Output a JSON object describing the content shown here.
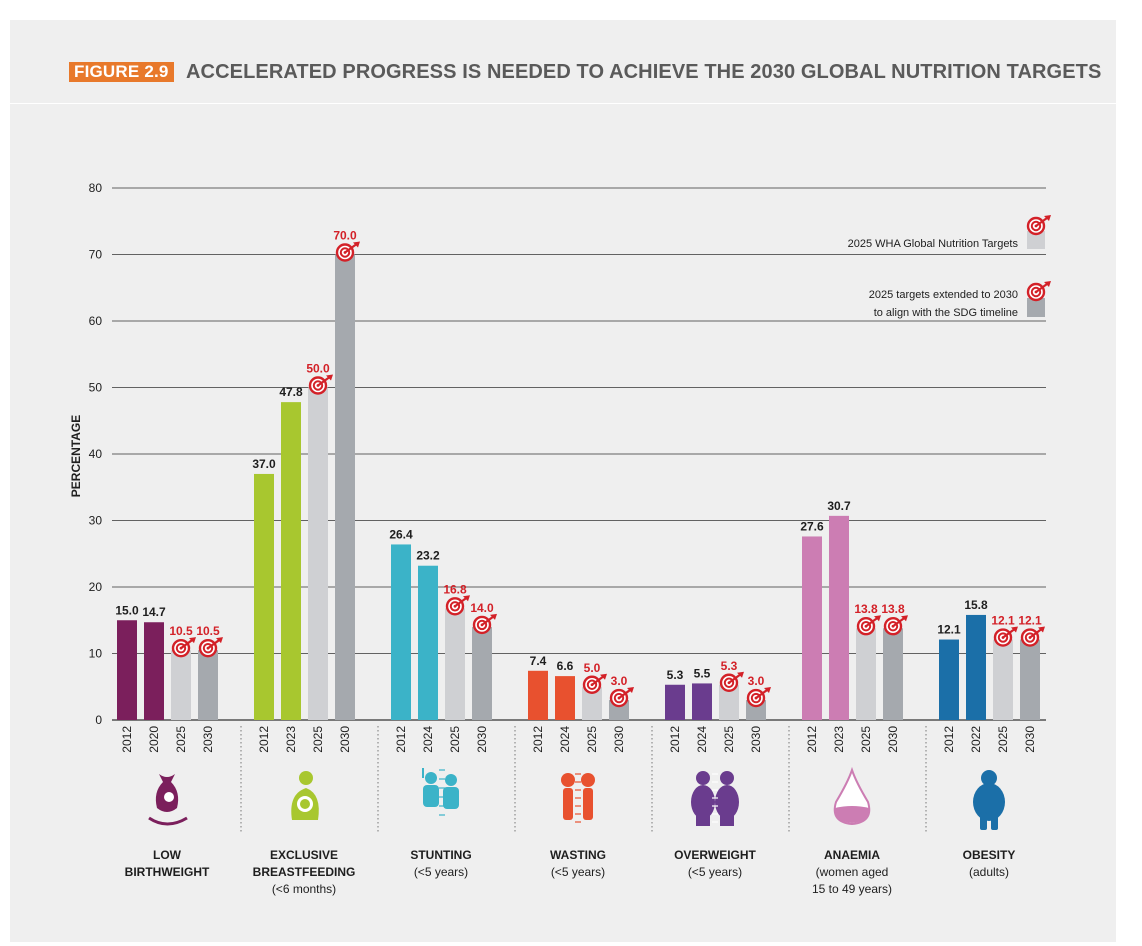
{
  "figure": {
    "label": "FIGURE 2.9",
    "title": "ACCELERATED PROGRESS IS NEEDED TO ACHIEVE THE 2030 GLOBAL NUTRITION TARGETS"
  },
  "legend": {
    "wha_targets": "2025 WHA Global Nutrition Targets",
    "extended_line1": "2025 targets extended to 2030",
    "extended_line2": "to align with the SDG timeline"
  },
  "colors": {
    "target_2025": "#cfd0d3",
    "target_2030": "#a5a9ae",
    "target_text": "#d32128",
    "gridline": "#333333"
  },
  "chart_data": {
    "type": "bar",
    "ylabel": "PERCENTAGE",
    "ylim": [
      0,
      80
    ],
    "yticks": [
      0,
      10,
      20,
      30,
      40,
      50,
      60,
      70,
      80
    ],
    "grid": true,
    "legend_position": "top-right",
    "groups": [
      {
        "name": "LOW BIRTHWEIGHT",
        "lines": [
          "LOW",
          "BIRTHWEIGHT"
        ],
        "sub": [],
        "icon": "mother-hand-icon",
        "color": "#7b1f5c",
        "bars": [
          {
            "year": "2012",
            "value": 15.0,
            "label": "15.0",
            "kind": "actual"
          },
          {
            "year": "2020",
            "value": 14.7,
            "label": "14.7",
            "kind": "actual"
          },
          {
            "year": "2025",
            "value": 10.5,
            "label": "10.5",
            "kind": "target2025"
          },
          {
            "year": "2030",
            "value": 10.5,
            "label": "10.5",
            "kind": "target2030"
          }
        ]
      },
      {
        "name": "EXCLUSIVE BREASTFEEDING",
        "lines": [
          "EXCLUSIVE",
          "BREASTFEEDING"
        ],
        "sub": [
          "(<6 months)"
        ],
        "icon": "breastfeeding-icon",
        "color": "#a8c72f",
        "bars": [
          {
            "year": "2012",
            "value": 37.0,
            "label": "37.0",
            "kind": "actual"
          },
          {
            "year": "2023",
            "value": 47.8,
            "label": "47.8",
            "kind": "actual"
          },
          {
            "year": "2025",
            "value": 50.0,
            "label": "50.0",
            "kind": "target2025"
          },
          {
            "year": "2030",
            "value": 70.0,
            "label": "70.0",
            "kind": "target2030"
          }
        ]
      },
      {
        "name": "STUNTING",
        "lines": [
          "STUNTING"
        ],
        "sub": [
          "(<5 years)"
        ],
        "icon": "stunting-children-icon",
        "color": "#3bb3c8",
        "bars": [
          {
            "year": "2012",
            "value": 26.4,
            "label": "26.4",
            "kind": "actual"
          },
          {
            "year": "2024",
            "value": 23.2,
            "label": "23.2",
            "kind": "actual"
          },
          {
            "year": "2025",
            "value": 16.8,
            "label": "16.8",
            "kind": "target2025"
          },
          {
            "year": "2030",
            "value": 14.0,
            "label": "14.0",
            "kind": "target2030"
          }
        ]
      },
      {
        "name": "WASTING",
        "lines": [
          "WASTING"
        ],
        "sub": [
          "(<5 years)"
        ],
        "icon": "wasting-children-icon",
        "color": "#e8512f",
        "bars": [
          {
            "year": "2012",
            "value": 7.4,
            "label": "7.4",
            "kind": "actual"
          },
          {
            "year": "2024",
            "value": 6.6,
            "label": "6.6",
            "kind": "actual"
          },
          {
            "year": "2025",
            "value": 5.0,
            "label": "5.0",
            "kind": "target2025"
          },
          {
            "year": "2030",
            "value": 3.0,
            "label": "3.0",
            "kind": "target2030"
          }
        ]
      },
      {
        "name": "OVERWEIGHT",
        "lines": [
          "OVERWEIGHT"
        ],
        "sub": [
          "(<5 years)"
        ],
        "icon": "overweight-children-icon",
        "color": "#6a3c8e",
        "bars": [
          {
            "year": "2012",
            "value": 5.3,
            "label": "5.3",
            "kind": "actual"
          },
          {
            "year": "2024",
            "value": 5.5,
            "label": "5.5",
            "kind": "actual"
          },
          {
            "year": "2025",
            "value": 5.3,
            "label": "5.3",
            "kind": "target2025"
          },
          {
            "year": "2030",
            "value": 3.0,
            "label": "3.0",
            "kind": "target2030"
          }
        ]
      },
      {
        "name": "ANAEMIA",
        "lines": [
          "ANAEMIA"
        ],
        "sub": [
          "(women aged",
          "15 to 49 years)"
        ],
        "icon": "blood-drop-icon",
        "color": "#cc7db3",
        "bars": [
          {
            "year": "2012",
            "value": 27.6,
            "label": "27.6",
            "kind": "actual"
          },
          {
            "year": "2023",
            "value": 30.7,
            "label": "30.7",
            "kind": "actual"
          },
          {
            "year": "2025",
            "value": 13.8,
            "label": "13.8",
            "kind": "target2025"
          },
          {
            "year": "2030",
            "value": 13.8,
            "label": "13.8",
            "kind": "target2030"
          }
        ]
      },
      {
        "name": "OBESITY",
        "lines": [
          "OBESITY"
        ],
        "sub": [
          "(adults)"
        ],
        "icon": "obese-adult-icon",
        "color": "#1b6fa8",
        "bars": [
          {
            "year": "2012",
            "value": 12.1,
            "label": "12.1",
            "kind": "actual"
          },
          {
            "year": "2022",
            "value": 15.8,
            "label": "15.8",
            "kind": "actual"
          },
          {
            "year": "2025",
            "value": 12.1,
            "label": "12.1",
            "kind": "target2025"
          },
          {
            "year": "2030",
            "value": 12.1,
            "label": "12.1",
            "kind": "target2030"
          }
        ]
      }
    ]
  }
}
